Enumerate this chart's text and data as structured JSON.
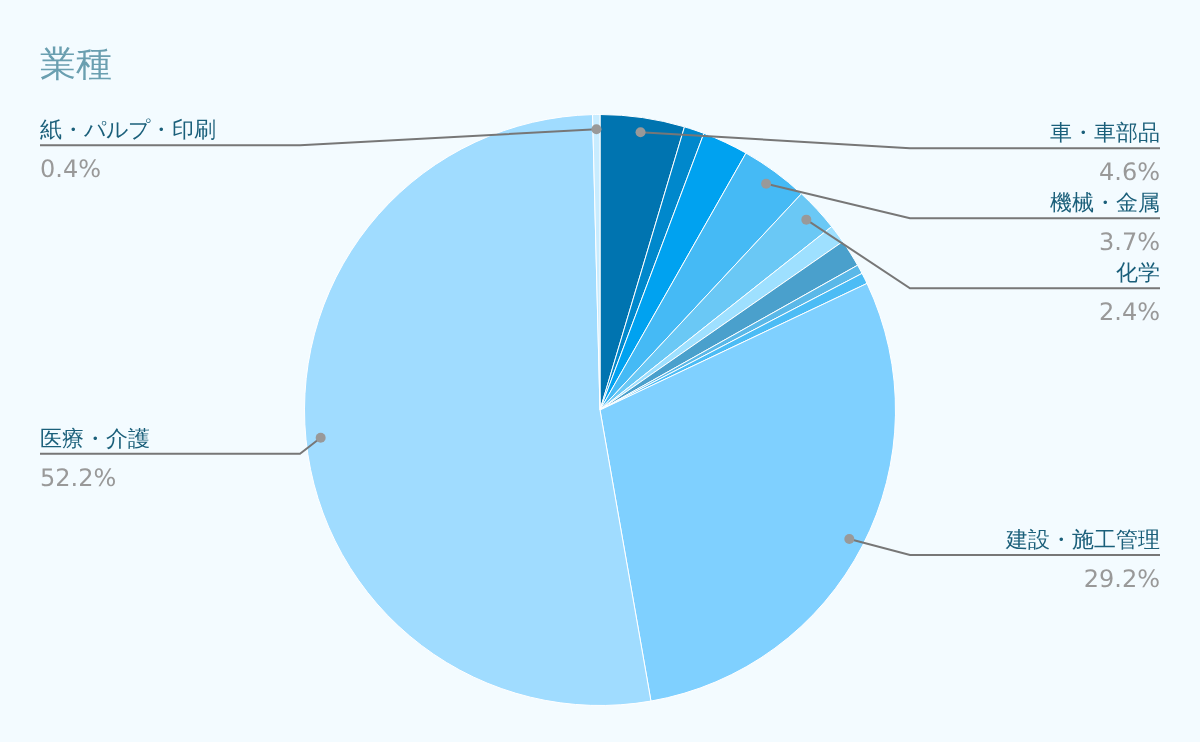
{
  "chart_data": {
    "type": "pie",
    "title": "業種",
    "categories": [
      "車・車部品",
      null,
      null,
      "機械・金属",
      "化学",
      null,
      null,
      null,
      null,
      "建設・施工管理",
      "医療・介護",
      "紙・パルプ・印刷"
    ],
    "values": [
      4.6,
      1.1,
      2.5,
      3.7,
      2.4,
      1.0,
      1.5,
      0.5,
      0.6,
      29.2,
      52.2,
      0.4
    ],
    "value_labels": [
      "4.6%",
      null,
      null,
      "3.7%",
      "2.4%",
      null,
      null,
      null,
      null,
      "29.2%",
      "52.2%",
      "0.4%"
    ],
    "colors": [
      "#0074b0",
      "#0088cc",
      "#00a2f0",
      "#45baf5",
      "#6ac8f5",
      "#9ee0ff",
      "#4aa0cc",
      "#5ab8e8",
      "#4cbcf5",
      "#7fd0ff",
      "#a0dcff",
      "#c8ecff"
    ],
    "legend": false
  }
}
